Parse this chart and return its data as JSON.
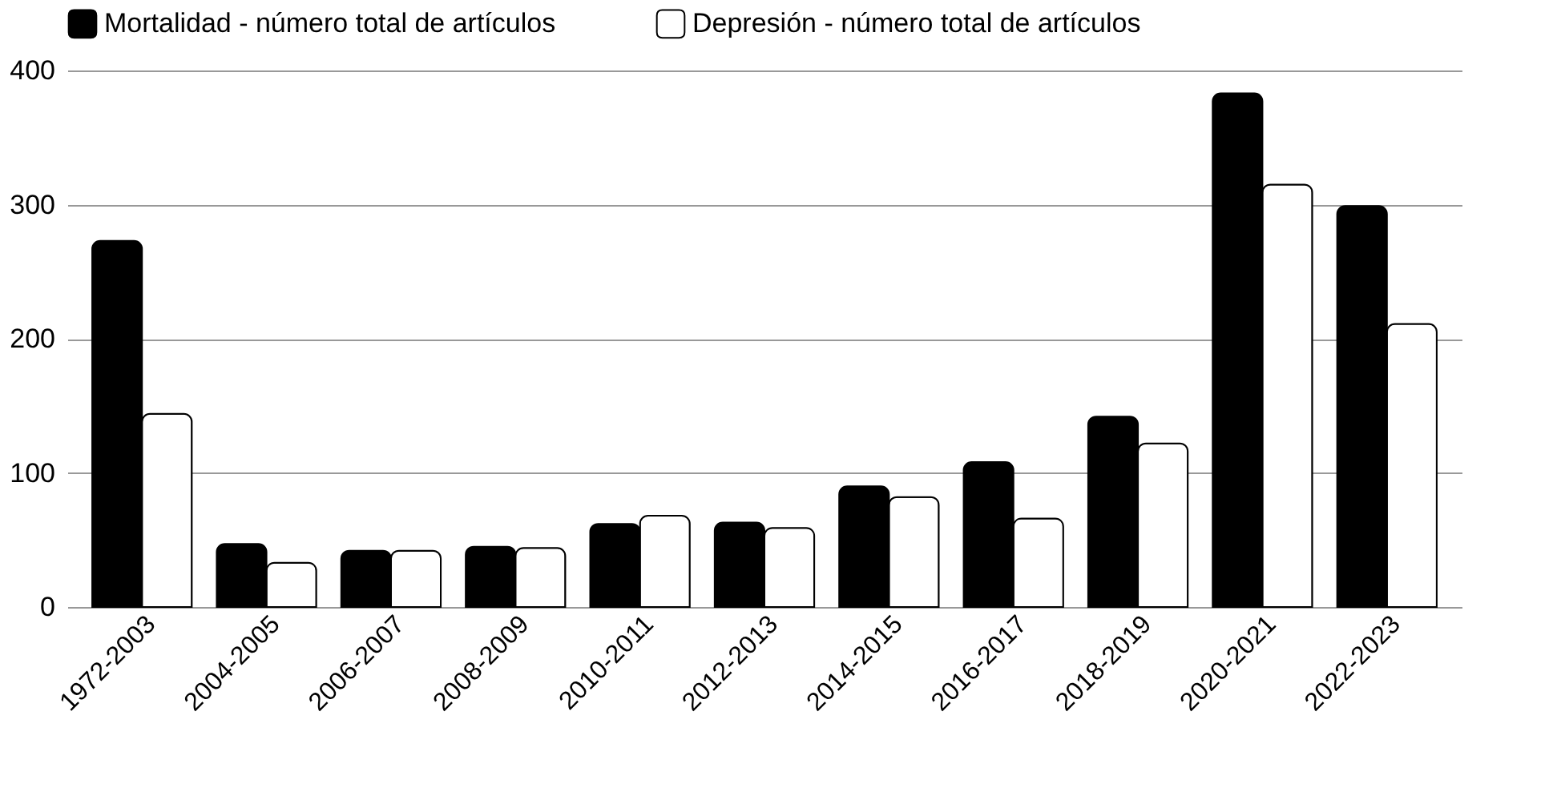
{
  "chart_data": {
    "type": "bar",
    "categories": [
      "1972-2003",
      "2004-2005",
      "2006-2007",
      "2008-2009",
      "2010-2011",
      "2012-2013",
      "2014-2015",
      "2016-2017",
      "2018-2019",
      "2020-2021",
      "2022-2023"
    ],
    "series": [
      {
        "name": "Mortalidad - número total de artículos",
        "color": "#000000",
        "values": [
          273,
          47,
          42,
          45,
          62,
          63,
          90,
          108,
          142,
          383,
          299
        ]
      },
      {
        "name": "Depresión - número total de artículos",
        "color": "#ffffff",
        "values": [
          144,
          33,
          42,
          44,
          68,
          59,
          82,
          66,
          122,
          315,
          211
        ]
      }
    ],
    "ylim": [
      0,
      400
    ],
    "yticks": [
      0,
      100,
      200,
      300,
      400
    ],
    "grid": "y",
    "legend": "top"
  }
}
